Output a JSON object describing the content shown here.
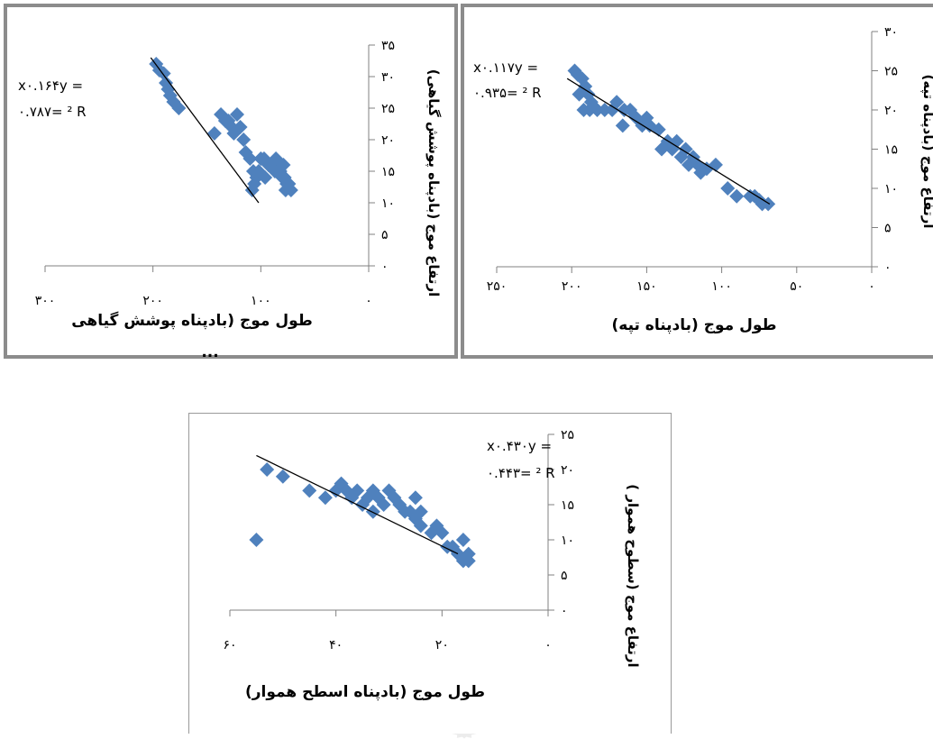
{
  "chart_data": [
    {
      "type": "scatter",
      "xlabel": "طول موج (بادپناه پوشش گیاهی",
      "xlabel_overflow": "...",
      "ylabel": "ارتفاع موج (بادپناه پوشش گیاهی)",
      "equation": "x۰.۱۶۴y =",
      "r2": "۰.۷۸۷= ² R",
      "x_ticks": [
        "۳۰۰",
        "۲۰۰",
        "۱۰۰",
        "۰"
      ],
      "y_ticks": [
        "۳۵",
        "۳۰",
        "۲۵",
        "۲۰",
        "۱۵",
        "۱۰",
        "۵",
        "۰"
      ],
      "xlim": [
        300,
        0
      ],
      "ylim": [
        0,
        35
      ],
      "x_reversed": true,
      "trendline": [
        [
          202,
          33
        ],
        [
          102,
          10
        ]
      ],
      "points": [
        [
          197,
          32
        ],
        [
          194,
          31
        ],
        [
          190,
          30.5
        ],
        [
          188,
          29
        ],
        [
          186,
          28
        ],
        [
          184,
          27
        ],
        [
          181,
          26
        ],
        [
          176,
          25
        ],
        [
          143,
          21
        ],
        [
          137,
          24
        ],
        [
          133,
          23
        ],
        [
          130,
          23
        ],
        [
          127,
          22
        ],
        [
          125,
          21
        ],
        [
          122,
          24
        ],
        [
          119,
          22
        ],
        [
          116,
          20
        ],
        [
          114,
          18
        ],
        [
          110,
          17
        ],
        [
          107,
          15
        ],
        [
          104,
          14
        ],
        [
          102,
          15
        ],
        [
          100,
          17
        ],
        [
          97,
          17
        ],
        [
          93,
          16
        ],
        [
          90,
          16
        ],
        [
          87,
          15
        ],
        [
          84,
          16
        ],
        [
          82,
          15
        ],
        [
          80,
          14
        ],
        [
          78,
          14
        ],
        [
          76,
          13
        ],
        [
          74,
          13
        ],
        [
          72,
          12
        ],
        [
          108,
          12
        ],
        [
          106,
          13
        ],
        [
          96,
          14
        ],
        [
          86,
          17
        ],
        [
          79,
          16
        ],
        [
          77,
          12
        ]
      ],
      "marker_color": "#4f81bd"
    },
    {
      "type": "scatter",
      "xlabel": "طول موج (بادپناه تپه)",
      "ylabel": "ارتفاع موج (بادپناه تپه)",
      "equation": "x۰.۱۱۷y =",
      "r2": "۰.۹۳۵= ² R",
      "x_ticks": [
        "۲۵۰",
        "۲۰۰",
        "۱۵۰",
        "۱۰۰",
        "۵۰",
        "۰"
      ],
      "y_ticks": [
        "۳۰",
        "۲۵",
        "۲۰",
        "۱۵",
        "۱۰",
        "۵",
        "۰"
      ],
      "xlim": [
        250,
        0
      ],
      "ylim": [
        0,
        30
      ],
      "x_reversed": true,
      "trendline": [
        [
          203,
          24
        ],
        [
          68,
          8
        ]
      ],
      "points": [
        [
          198,
          25
        ],
        [
          196,
          24.5
        ],
        [
          193,
          24
        ],
        [
          191,
          23
        ],
        [
          189,
          22
        ],
        [
          187,
          21
        ],
        [
          195,
          22
        ],
        [
          192,
          20
        ],
        [
          188,
          20
        ],
        [
          183,
          20
        ],
        [
          178,
          20
        ],
        [
          173,
          20
        ],
        [
          170,
          21
        ],
        [
          166,
          18
        ],
        [
          165,
          20
        ],
        [
          161,
          20
        ],
        [
          157,
          19
        ],
        [
          153,
          18
        ],
        [
          150,
          19
        ],
        [
          148,
          18
        ],
        [
          142,
          17.5
        ],
        [
          140,
          15
        ],
        [
          136,
          16
        ],
        [
          133,
          15
        ],
        [
          130,
          16
        ],
        [
          127,
          14
        ],
        [
          124,
          15
        ],
        [
          122,
          13
        ],
        [
          119,
          14
        ],
        [
          116,
          13
        ],
        [
          114,
          12
        ],
        [
          110,
          12.5
        ],
        [
          104,
          13
        ],
        [
          96,
          10
        ],
        [
          90,
          9
        ],
        [
          81,
          9
        ],
        [
          78,
          9
        ],
        [
          75,
          8.5
        ],
        [
          73,
          8
        ],
        [
          69,
          8
        ]
      ],
      "marker_color": "#4f81bd"
    },
    {
      "type": "scatter",
      "xlabel": "طول موج (بادپناه اسطح هموار)",
      "ylabel": "ارتفاع موج (سطوح هموار )",
      "equation": "x۰.۴۳۰y =",
      "r2": "۰.۴۴۳= ² R",
      "x_ticks": [
        "۶۰",
        "۴۰",
        "۲۰",
        "۰"
      ],
      "y_ticks": [
        "۲۵",
        "۲۰",
        "۱۵",
        "۱۰",
        "۵",
        "۰"
      ],
      "xlim": [
        60,
        0
      ],
      "ylim": [
        0,
        25
      ],
      "x_reversed": true,
      "trendline": [
        [
          55,
          22
        ],
        [
          17,
          8
        ]
      ],
      "points": [
        [
          55,
          10
        ],
        [
          53,
          20
        ],
        [
          50,
          19
        ],
        [
          45,
          17
        ],
        [
          42,
          16
        ],
        [
          40,
          17
        ],
        [
          39,
          18
        ],
        [
          38,
          17
        ],
        [
          37,
          16
        ],
        [
          36,
          17
        ],
        [
          35,
          15
        ],
        [
          34,
          16
        ],
        [
          33,
          14
        ],
        [
          33,
          17
        ],
        [
          32,
          16
        ],
        [
          31,
          15
        ],
        [
          30,
          17
        ],
        [
          29,
          16
        ],
        [
          28,
          15
        ],
        [
          27,
          14
        ],
        [
          26,
          14
        ],
        [
          25,
          13
        ],
        [
          25,
          16
        ],
        [
          24,
          12
        ],
        [
          24,
          14
        ],
        [
          22,
          11
        ],
        [
          21,
          12
        ],
        [
          20,
          11
        ],
        [
          19,
          9
        ],
        [
          18,
          9
        ],
        [
          17,
          8
        ],
        [
          16,
          7
        ],
        [
          15,
          7
        ],
        [
          16,
          10
        ],
        [
          15,
          8
        ]
      ],
      "marker_color": "#4f81bd"
    }
  ]
}
